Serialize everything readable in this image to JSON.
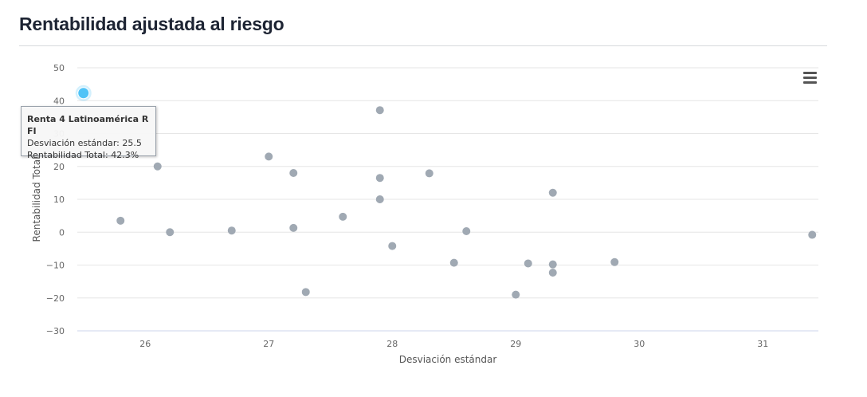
{
  "header": {
    "title": "Rentabilidad ajustada al riesgo"
  },
  "chart_data": {
    "type": "scatter",
    "title": "Rentabilidad ajustada al riesgo",
    "xlabel": "Desviación estándar",
    "ylabel": "Rentabilidad Total",
    "xlim": [
      25.45,
      31.45
    ],
    "ylim": [
      -30,
      50
    ],
    "x_ticks": [
      "26",
      "27",
      "28",
      "29",
      "30",
      "31"
    ],
    "y_ticks": [
      "50",
      "40",
      "30",
      "20",
      "10",
      "0",
      "−10",
      "−20",
      "−30"
    ],
    "grid": true,
    "point_color": "#a0a9b3",
    "highlight_color": "#4fc3f7",
    "points": [
      {
        "x": 25.5,
        "y": 42.3,
        "highlight": true
      },
      {
        "x": 25.8,
        "y": 3.5
      },
      {
        "x": 26.1,
        "y": 20
      },
      {
        "x": 26.2,
        "y": 0
      },
      {
        "x": 26.7,
        "y": 0.5
      },
      {
        "x": 27.0,
        "y": 23
      },
      {
        "x": 27.2,
        "y": 18
      },
      {
        "x": 27.2,
        "y": 1.3
      },
      {
        "x": 27.3,
        "y": -18.2
      },
      {
        "x": 27.6,
        "y": 4.7
      },
      {
        "x": 27.9,
        "y": 37.1
      },
      {
        "x": 27.9,
        "y": 16.5
      },
      {
        "x": 27.9,
        "y": 10
      },
      {
        "x": 28.0,
        "y": -4.2
      },
      {
        "x": 28.3,
        "y": 17.9
      },
      {
        "x": 28.5,
        "y": -9.3
      },
      {
        "x": 28.6,
        "y": 0.3
      },
      {
        "x": 29.0,
        "y": -19
      },
      {
        "x": 29.1,
        "y": -9.5
      },
      {
        "x": 29.3,
        "y": 12
      },
      {
        "x": 29.3,
        "y": -9.8
      },
      {
        "x": 29.3,
        "y": -12.3
      },
      {
        "x": 29.8,
        "y": -9.1
      },
      {
        "x": 31.4,
        "y": -0.8
      }
    ]
  },
  "tooltip": {
    "name": "Renta 4 Latinoamérica R FI",
    "std_label": "Desviación estándar:",
    "std_value": "25.5",
    "ret_label": "Rentabilidad Total:",
    "ret_value": "42.3%"
  },
  "menu": {
    "icon": "hamburger-menu-icon"
  }
}
